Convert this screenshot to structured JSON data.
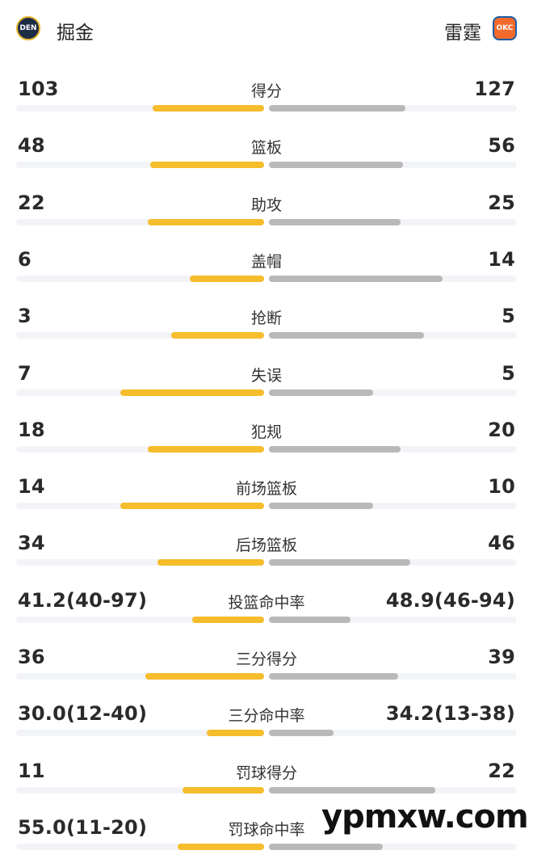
{
  "header": {
    "home_team": "掘金",
    "away_team": "雷霆",
    "home_logo_text": "DEN",
    "away_logo_text": "OKC"
  },
  "colors": {
    "home_bar": "#f6bd2c",
    "away_bar": "#b9b9b9",
    "track": "#f3f4f7"
  },
  "stats": [
    {
      "label": "得分",
      "home": "103",
      "away": "127",
      "home_frac": 0.45,
      "away_frac": 0.55
    },
    {
      "label": "篮板",
      "home": "48",
      "away": "56",
      "home_frac": 0.46,
      "away_frac": 0.54
    },
    {
      "label": "助攻",
      "home": "22",
      "away": "25",
      "home_frac": 0.47,
      "away_frac": 0.53
    },
    {
      "label": "盖帽",
      "home": "6",
      "away": "14",
      "home_frac": 0.3,
      "away_frac": 0.7
    },
    {
      "label": "抢断",
      "home": "3",
      "away": "5",
      "home_frac": 0.375,
      "away_frac": 0.625
    },
    {
      "label": "失误",
      "home": "7",
      "away": "5",
      "home_frac": 0.58,
      "away_frac": 0.42
    },
    {
      "label": "犯规",
      "home": "18",
      "away": "20",
      "home_frac": 0.47,
      "away_frac": 0.53
    },
    {
      "label": "前场篮板",
      "home": "14",
      "away": "10",
      "home_frac": 0.58,
      "away_frac": 0.42
    },
    {
      "label": "后场篮板",
      "home": "34",
      "away": "46",
      "home_frac": 0.43,
      "away_frac": 0.57
    },
    {
      "label": "投篮命中率",
      "home": "41.2(40-97)",
      "away": "48.9(46-94)",
      "home_frac": 0.29,
      "away_frac": 0.33
    },
    {
      "label": "三分得分",
      "home": "36",
      "away": "39",
      "home_frac": 0.48,
      "away_frac": 0.52
    },
    {
      "label": "三分命中率",
      "home": "30.0(12-40)",
      "away": "34.2(13-38)",
      "home_frac": 0.23,
      "away_frac": 0.26
    },
    {
      "label": "罚球得分",
      "home": "11",
      "away": "22",
      "home_frac": 0.33,
      "away_frac": 0.67
    },
    {
      "label": "罚球命中率",
      "home": "55.0(11-20)",
      "away": "",
      "home_frac": 0.35,
      "away_frac": 0.46
    }
  ],
  "watermark": "ypmxw.com"
}
